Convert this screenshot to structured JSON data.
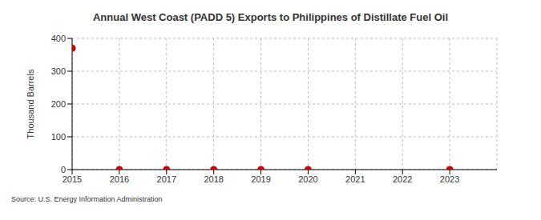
{
  "chart_data": {
    "type": "scatter",
    "title": "Annual West Coast (PADD 5) Exports to Philippines of Distillate Fuel Oil",
    "y_label": "Thousand Barrels",
    "source": "Source: U.S. Energy Information Administration",
    "x": [
      2015,
      2016,
      2017,
      2018,
      2019,
      2020,
      2021,
      2022,
      2023
    ],
    "values": [
      370,
      0,
      0,
      0,
      0,
      0,
      null,
      null,
      0
    ],
    "color": "#cc0000",
    "marker": "circle",
    "xlim": [
      2015,
      2024
    ],
    "xticks": [
      2015,
      2016,
      2017,
      2018,
      2019,
      2020,
      2021,
      2022,
      2023
    ],
    "ylim": [
      0,
      400
    ],
    "yticks": [
      0,
      100,
      200,
      300,
      400
    ],
    "grid": true
  }
}
